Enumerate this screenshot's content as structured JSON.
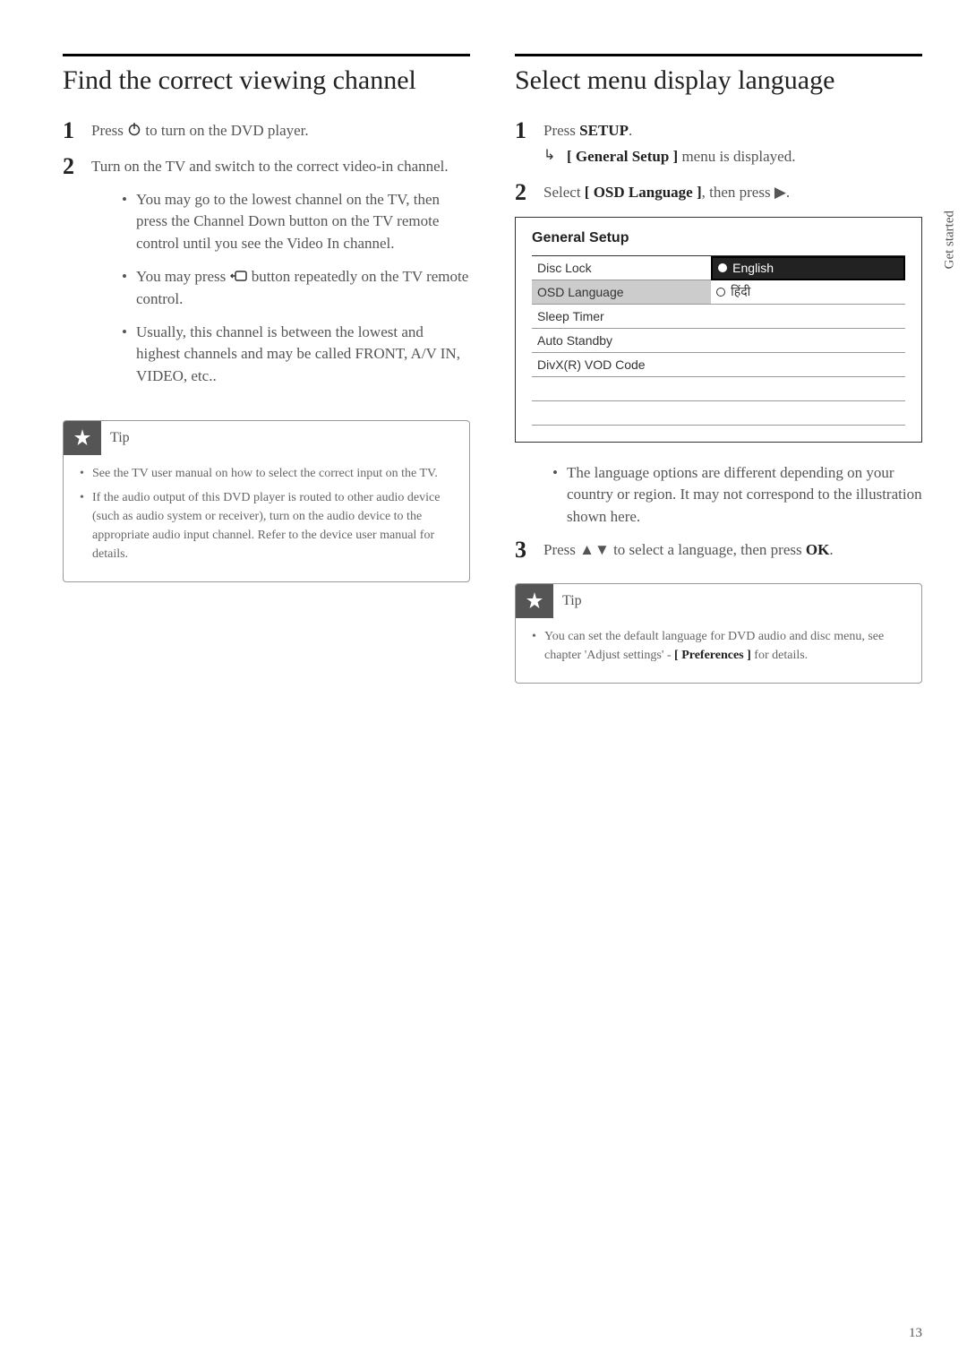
{
  "left": {
    "heading": "Find the correct viewing channel",
    "step1": "Press ⏻ to turn on the DVD player.",
    "step2": "Turn on the TV and switch to the correct video-in channel.",
    "bullets": [
      "You may go to the lowest channel on the TV, then press the Channel Down button on the TV remote control until you see the Video In channel.",
      "You may press �计 button repeatedly on the TV remote control.",
      "Usually, this channel is between the lowest and highest channels and may be called FRONT, A/V IN, VIDEO, etc.."
    ],
    "tip_label": "Tip",
    "tip_items": [
      "See the TV user manual on how to select the correct input on the TV.",
      "If the audio output of this DVD player is routed to other audio device (such as audio system or receiver), turn on the audio device to the appropriate audio input channel. Refer to the device user manual for details."
    ]
  },
  "right": {
    "heading": "Select menu display language",
    "step1_pre": "Press ",
    "step1_bold": "SETUP",
    "step1_post": ".",
    "step1_result_pre": "",
    "step1_result_bold": "[ General Setup ]",
    "step1_result_post": " menu is displayed.",
    "step2_pre": "Select ",
    "step2_bold": "[ OSD Language ]",
    "step2_post": ", then press ▶.",
    "menu": {
      "title": "General Setup",
      "left_items": [
        "Disc Lock",
        "OSD Language",
        "Sleep Timer",
        "Auto Standby",
        "DivX(R)  VOD Code",
        "",
        ""
      ],
      "right_items": [
        "English",
        "हिंदी",
        "",
        "",
        "",
        "",
        ""
      ],
      "selected_left_idx": 1,
      "selected_right_idx": 0
    },
    "note_bullet": "The language options are different depending on your country or region. It may not correspond to the illustration shown here.",
    "step3_pre": "Press ",
    "step3_mid": "▲▼",
    "step3_post1": " to select a language, then press ",
    "step3_bold": "OK",
    "step3_post2": ".",
    "tip_label": "Tip",
    "tip_item_pre": "You can set the default language for DVD audio and disc menu, see chapter 'Adjust settings' - ",
    "tip_item_bold": "[ Preferences ]",
    "tip_item_post": " for details."
  },
  "side_label": "Get started",
  "page_number": "13",
  "colors": {
    "text_main": "#555555",
    "heading": "#222222",
    "border_dark": "#000000",
    "tip_icon_bg": "#555555",
    "menu_highlight": "#222222",
    "menu_grey": "#cccccc"
  }
}
